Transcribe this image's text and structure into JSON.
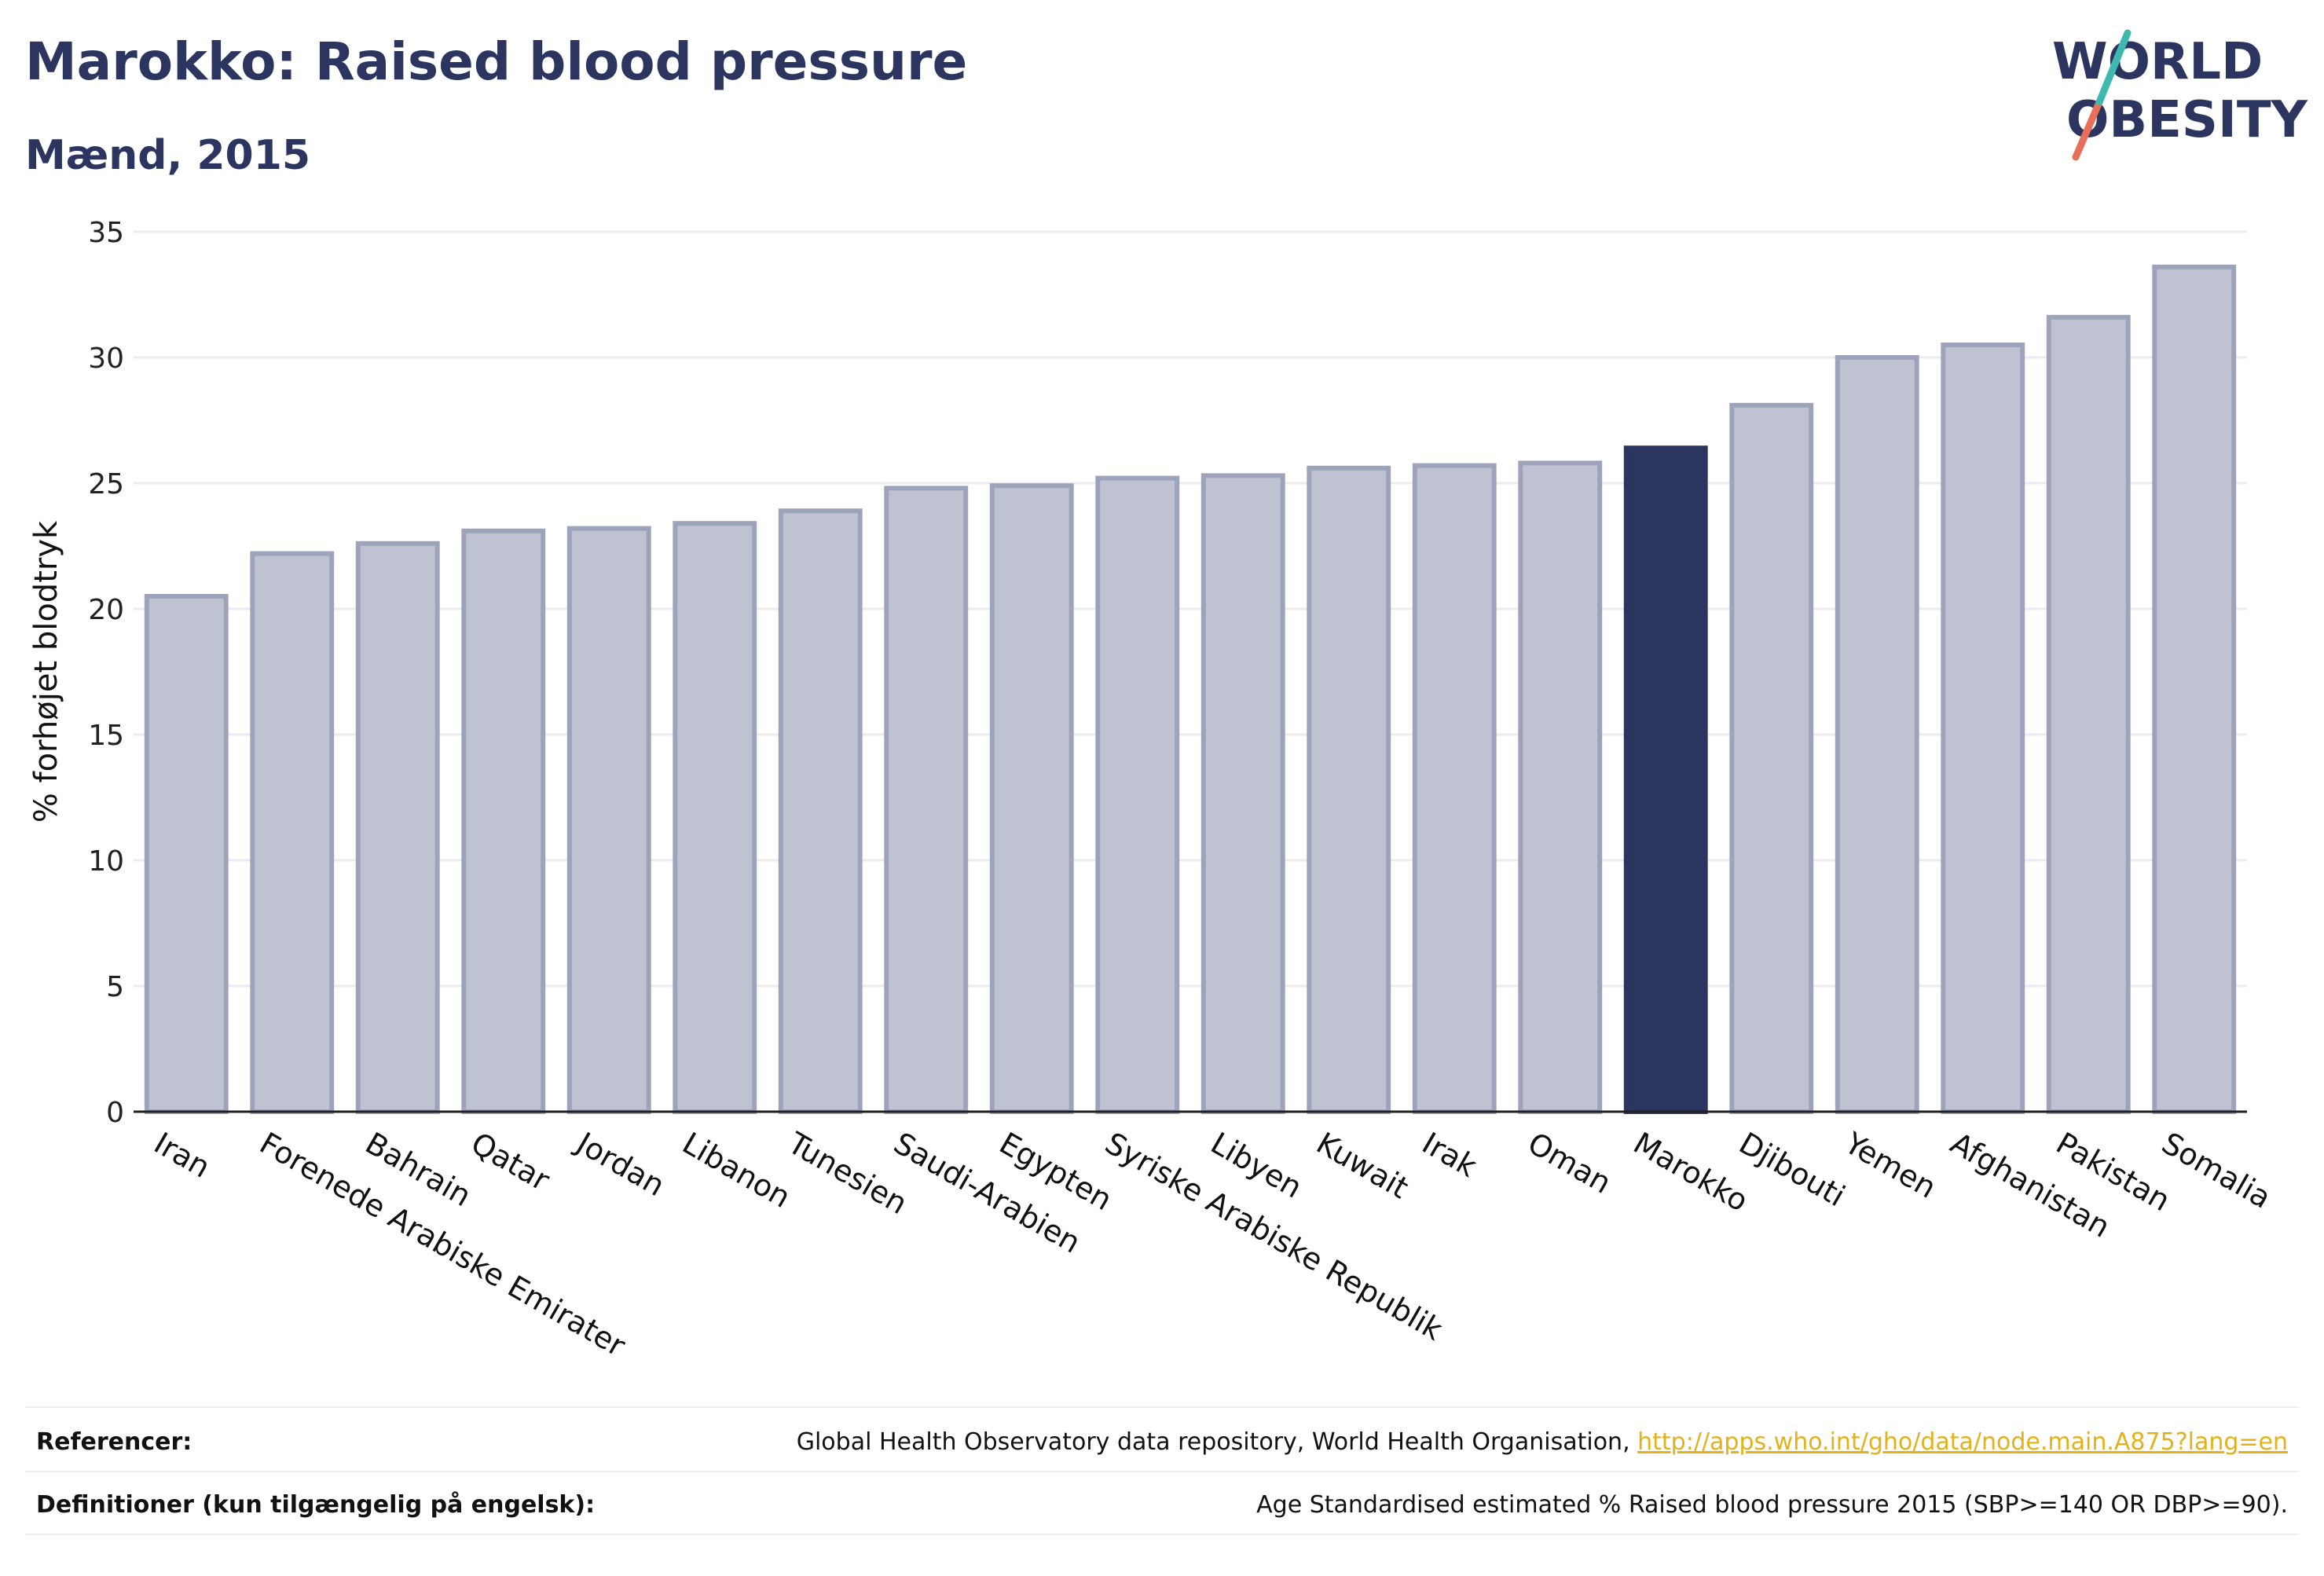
{
  "header": {
    "title": "Marokko: Raised blood pressure",
    "subtitle": "Mænd, 2015"
  },
  "logo": {
    "line1": "WORLD",
    "line2": "OBESITY"
  },
  "colors": {
    "highlight": "#2b3560",
    "bar": "#bfc3d1",
    "bar_border": "#9da3ba",
    "title": "#2b3560",
    "link": "#e3b11a"
  },
  "chart_data": {
    "type": "bar",
    "ylabel": "% forhøjet blodtryk",
    "xlabel": "",
    "ylim": [
      0,
      35
    ],
    "yticks": [
      0,
      5,
      10,
      15,
      20,
      25,
      30,
      35
    ],
    "grid": true,
    "highlight": "Marokko",
    "categories": [
      "Iran",
      "Forenede Arabiske Emirater",
      "Bahrain",
      "Qatar",
      "Jordan",
      "Libanon",
      "Tunesien",
      "Saudi-Arabien",
      "Egypten",
      "Syriske Arabiske Republik",
      "Libyen",
      "Kuwait",
      "Irak",
      "Oman",
      "Marokko",
      "Djibouti",
      "Yemen",
      "Afghanistan",
      "Pakistan",
      "Somalia"
    ],
    "values": [
      20.5,
      22.2,
      22.6,
      23.1,
      23.2,
      23.4,
      23.9,
      24.8,
      24.9,
      25.2,
      25.3,
      25.6,
      25.7,
      25.8,
      26.4,
      28.1,
      30.0,
      30.5,
      31.6,
      33.6
    ]
  },
  "footer": {
    "references_label": "Referencer:",
    "references_text": "Global Health Observatory data repository, World Health Organisation, ",
    "references_link": "http://apps.who.int/gho/data/node.main.A875?lang=en",
    "definitions_label": "Definitioner (kun tilgængelig på engelsk):",
    "definitions_text": "Age Standardised estimated % Raised blood pressure 2015 (SBP>=140 OR DBP>=90)."
  }
}
